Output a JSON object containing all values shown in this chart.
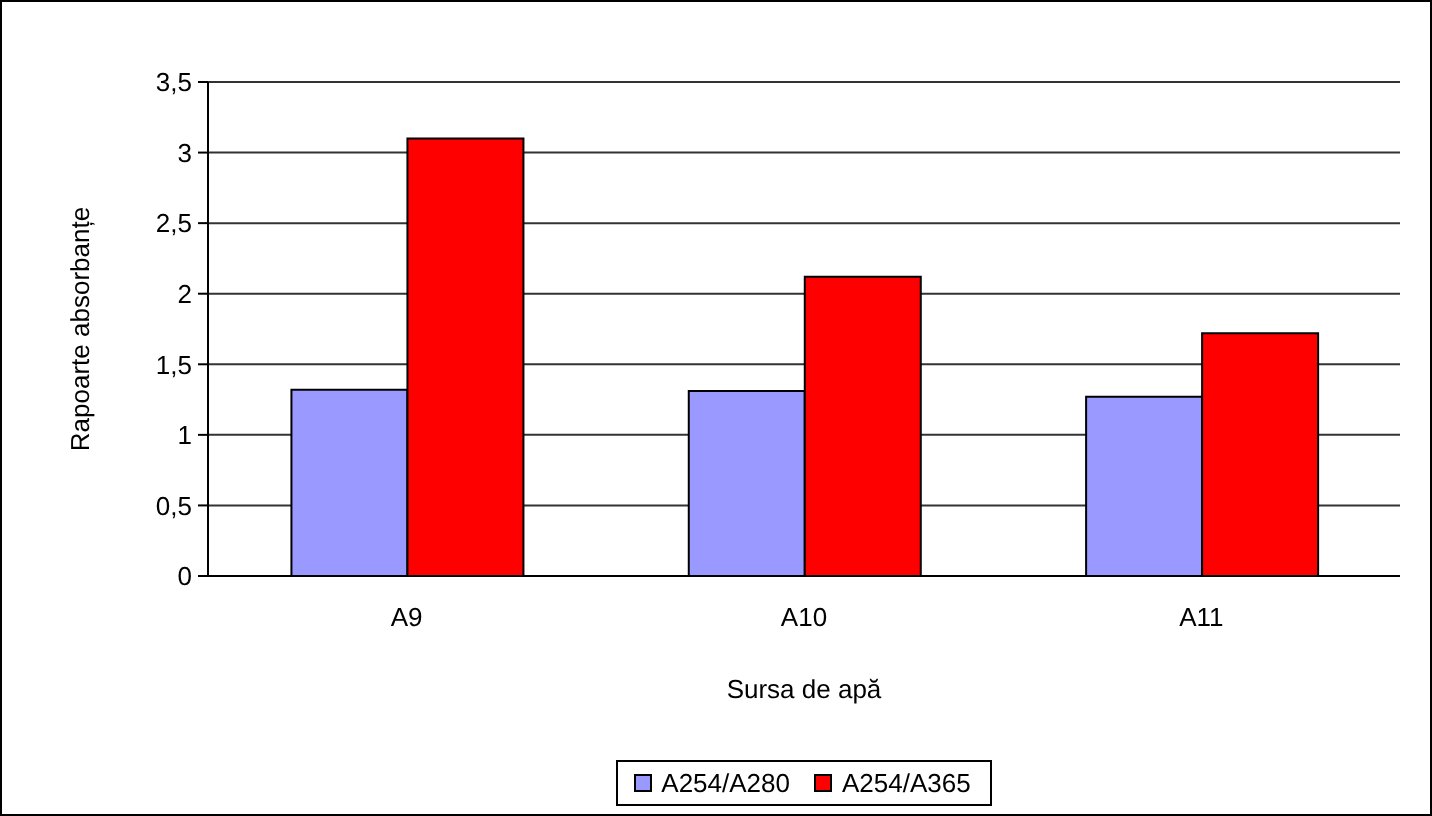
{
  "chart_data": {
    "type": "bar",
    "xlabel": "Sursa de apă",
    "ylabel": "Rapoarte absorbanțe",
    "categories": [
      "A9",
      "A10",
      "A11"
    ],
    "series": [
      {
        "name": "A254/A280",
        "color": "#9999ff",
        "values": [
          1.32,
          1.31,
          1.27
        ]
      },
      {
        "name": "A254/A365",
        "color": "#ff0000",
        "values": [
          3.1,
          2.12,
          1.72
        ]
      }
    ],
    "ylim": [
      0,
      3.5
    ],
    "yticks": [
      0,
      {
        "value": 0.5,
        "label": "0,5"
      },
      1,
      {
        "value": 1.5,
        "label": "1,5"
      },
      2,
      {
        "value": 2.5,
        "label": "2,5"
      },
      3,
      {
        "value": 3.5,
        "label": "3,5"
      }
    ],
    "grid": "y",
    "legend": "bottom"
  }
}
